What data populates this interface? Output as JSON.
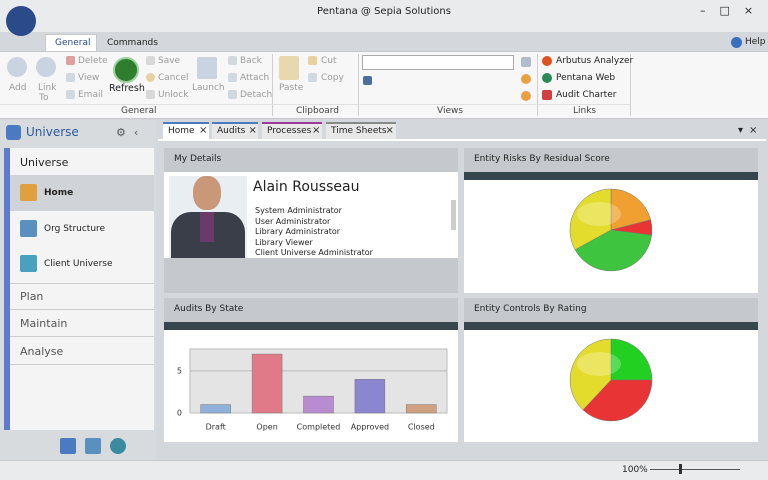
{
  "window": {
    "title": "Pentana @ Sepia Solutions"
  },
  "ribbon": {
    "tabs": [
      "General",
      "Commands"
    ],
    "help": "Help",
    "general": {
      "label": "General",
      "add": "Add",
      "link": "Link",
      "link_to": "To",
      "delete": "Delete",
      "view": "View",
      "email": "Email",
      "refresh": "Refresh",
      "save": "Save",
      "cancel": "Cancel",
      "unlock": "Unlock",
      "launch": "Launch",
      "back": "Back",
      "attach": "Attach",
      "detach": "Detach"
    },
    "clipboard": {
      "label": "Clipboard",
      "paste": "Paste",
      "cut": "Cut",
      "copy": "Copy"
    },
    "views": {
      "label": "Views"
    },
    "links": {
      "label": "Links",
      "items": [
        "Arbutus Analyzer",
        "Pentana Web",
        "Audit Charter"
      ]
    }
  },
  "sidebar": {
    "title": "Universe",
    "section": "Universe",
    "items": [
      "Home",
      "Org Structure",
      "Client Universe"
    ],
    "groups": [
      "Plan",
      "Maintain",
      "Analyse"
    ]
  },
  "doc_tabs": [
    "Home",
    "Audits",
    "Processes",
    "Time Sheets"
  ],
  "details": {
    "title": "My Details",
    "name": "Alain Rousseau",
    "roles": [
      "System Administrator",
      "User Administrator",
      "Library Administrator",
      "Library Viewer",
      "Client Universe Administrator"
    ]
  },
  "chart_data": [
    {
      "type": "pie",
      "title": "Entity Risks By Residual Score",
      "values": [
        21,
        6,
        40,
        33
      ],
      "colors": [
        "#f0a030",
        "#e83434",
        "#3ec43e",
        "#e4dc2c"
      ]
    },
    {
      "type": "bar",
      "title": "Audits By State",
      "categories": [
        "Draft",
        "Open",
        "Completed",
        "Approved",
        "Closed"
      ],
      "values": [
        1,
        7,
        2,
        4,
        1
      ],
      "colors": [
        "#8fb0d8",
        "#e07a88",
        "#b98bd0",
        "#8a86d0",
        "#d0a080"
      ],
      "ylim": [
        0,
        7.6
      ],
      "yticks": [
        0,
        5
      ],
      "grid": true
    },
    {
      "type": "pie",
      "title": "Entity Controls By Rating",
      "values": [
        25,
        37,
        38
      ],
      "colors": [
        "#22d022",
        "#e83434",
        "#e4dc2c"
      ]
    }
  ],
  "status": {
    "zoom": "100%"
  }
}
